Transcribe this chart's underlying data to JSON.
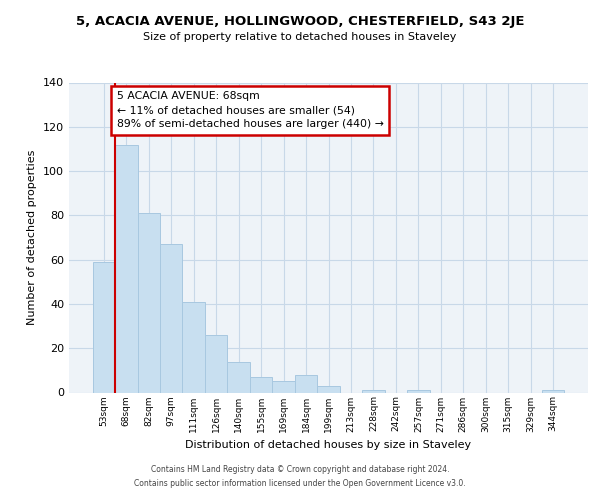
{
  "title": "5, ACACIA AVENUE, HOLLINGWOOD, CHESTERFIELD, S43 2JE",
  "subtitle": "Size of property relative to detached houses in Staveley",
  "xlabel": "Distribution of detached houses by size in Staveley",
  "ylabel": "Number of detached properties",
  "bar_labels": [
    "53sqm",
    "68sqm",
    "82sqm",
    "97sqm",
    "111sqm",
    "126sqm",
    "140sqm",
    "155sqm",
    "169sqm",
    "184sqm",
    "199sqm",
    "213sqm",
    "228sqm",
    "242sqm",
    "257sqm",
    "271sqm",
    "286sqm",
    "300sqm",
    "315sqm",
    "329sqm",
    "344sqm"
  ],
  "bar_values": [
    59,
    112,
    81,
    67,
    41,
    26,
    14,
    7,
    5,
    8,
    3,
    0,
    1,
    0,
    1,
    0,
    0,
    0,
    0,
    0,
    1
  ],
  "bar_color": "#c8dff0",
  "bar_edge_color": "#a8c8e0",
  "vline_x_index": 1,
  "vline_color": "#cc0000",
  "annotation_line1": "5 ACACIA AVENUE: 68sqm",
  "annotation_line2": "← 11% of detached houses are smaller (54)",
  "annotation_line3": "89% of semi-detached houses are larger (440) →",
  "annotation_box_color": "#ffffff",
  "annotation_box_edge_color": "#cc0000",
  "ylim": [
    0,
    140
  ],
  "yticks": [
    0,
    20,
    40,
    60,
    80,
    100,
    120,
    140
  ],
  "grid_color": "#c8d8e8",
  "background_color": "#eef3f8",
  "footer_line1": "Contains HM Land Registry data © Crown copyright and database right 2024.",
  "footer_line2": "Contains public sector information licensed under the Open Government Licence v3.0."
}
